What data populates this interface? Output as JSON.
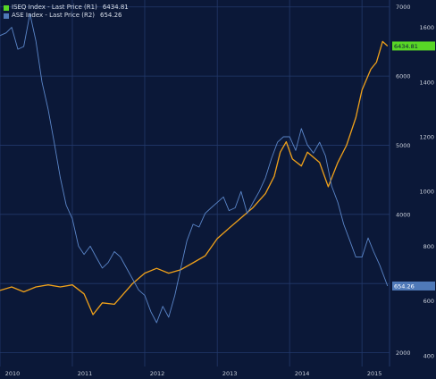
{
  "colors": {
    "background": "#0b1838",
    "grid": "#22386a",
    "axis_text": "#c8ced9",
    "iseq": "#f0a11a",
    "iseq_up": "#4fc12c",
    "iseq_down": "#e03a2a",
    "ase": "#5b86c9",
    "iseq_badge": "#58d626",
    "ase_badge": "#4f79b8"
  },
  "chart_data": {
    "type": "line",
    "title": "",
    "x_ticks": [
      "2010",
      "2011",
      "2012",
      "2013",
      "2014",
      "2015"
    ],
    "xlim": [
      "2010-01-01",
      "2015-05-20"
    ],
    "legend_placement": "top-left",
    "grid": true,
    "axes": {
      "left": {
        "ticks": [
          "2000",
          "3000",
          "4000",
          "5000",
          "6000",
          "7000"
        ],
        "ylim": [
          1800,
          7100
        ]
      },
      "right": {
        "ticks": [
          "400",
          "600",
          "800",
          "1000",
          "1200",
          "1400",
          "1600"
        ],
        "ylim": [
          360,
          1700
        ]
      }
    },
    "series": [
      {
        "name": "ISEQ Index - Last Price (R1)",
        "last_value": "6434.81",
        "axis": "left",
        "points": [
          [
            "2010-01-01",
            2900
          ],
          [
            "2010-03-01",
            2950
          ],
          [
            "2010-05-01",
            2880
          ],
          [
            "2010-07-01",
            2950
          ],
          [
            "2010-09-01",
            2980
          ],
          [
            "2010-11-01",
            2950
          ],
          [
            "2011-01-01",
            2980
          ],
          [
            "2011-03-01",
            2850
          ],
          [
            "2011-04-15",
            2550
          ],
          [
            "2011-06-01",
            2720
          ],
          [
            "2011-08-01",
            2700
          ],
          [
            "2011-09-01",
            2800
          ],
          [
            "2011-11-01",
            3000
          ],
          [
            "2012-01-01",
            3150
          ],
          [
            "2012-03-01",
            3220
          ],
          [
            "2012-05-01",
            3150
          ],
          [
            "2012-07-01",
            3200
          ],
          [
            "2012-09-01",
            3300
          ],
          [
            "2012-11-01",
            3400
          ],
          [
            "2013-01-01",
            3650
          ],
          [
            "2013-03-01",
            3800
          ],
          [
            "2013-05-01",
            3950
          ],
          [
            "2013-07-01",
            4100
          ],
          [
            "2013-09-01",
            4300
          ],
          [
            "2013-10-15",
            4550
          ],
          [
            "2013-11-15",
            4900
          ],
          [
            "2013-12-15",
            5050
          ],
          [
            "2014-01-15",
            4800
          ],
          [
            "2014-03-01",
            4700
          ],
          [
            "2014-04-01",
            4900
          ],
          [
            "2014-06-01",
            4750
          ],
          [
            "2014-07-15",
            4400
          ],
          [
            "2014-09-01",
            4750
          ],
          [
            "2014-10-15",
            5000
          ],
          [
            "2014-12-01",
            5400
          ],
          [
            "2015-01-01",
            5800
          ],
          [
            "2015-02-15",
            6100
          ],
          [
            "2015-03-15",
            6200
          ],
          [
            "2015-04-15",
            6500
          ],
          [
            "2015-05-10",
            6434.81
          ]
        ]
      },
      {
        "name": "ASE Index - Last Price (R2)",
        "last_value": "654.26",
        "axis": "right",
        "points": [
          [
            "2010-01-01",
            1570
          ],
          [
            "2010-02-01",
            1580
          ],
          [
            "2010-03-01",
            1600
          ],
          [
            "2010-04-01",
            1520
          ],
          [
            "2010-05-01",
            1530
          ],
          [
            "2010-06-01",
            1650
          ],
          [
            "2010-07-01",
            1550
          ],
          [
            "2010-08-01",
            1400
          ],
          [
            "2010-09-01",
            1300
          ],
          [
            "2010-10-01",
            1180
          ],
          [
            "2010-11-01",
            1050
          ],
          [
            "2010-12-01",
            950
          ],
          [
            "2011-01-01",
            900
          ],
          [
            "2011-02-01",
            800
          ],
          [
            "2011-03-01",
            770
          ],
          [
            "2011-04-01",
            800
          ],
          [
            "2011-05-01",
            760
          ],
          [
            "2011-06-01",
            720
          ],
          [
            "2011-07-01",
            740
          ],
          [
            "2011-08-01",
            780
          ],
          [
            "2011-09-01",
            760
          ],
          [
            "2011-10-01",
            720
          ],
          [
            "2011-11-01",
            680
          ],
          [
            "2011-12-01",
            640
          ],
          [
            "2012-01-01",
            620
          ],
          [
            "2012-02-01",
            560
          ],
          [
            "2012-03-01",
            520
          ],
          [
            "2012-04-01",
            580
          ],
          [
            "2012-05-01",
            540
          ],
          [
            "2012-06-01",
            620
          ],
          [
            "2012-07-01",
            720
          ],
          [
            "2012-08-01",
            820
          ],
          [
            "2012-09-01",
            880
          ],
          [
            "2012-10-01",
            870
          ],
          [
            "2012-11-01",
            920
          ],
          [
            "2012-12-01",
            940
          ],
          [
            "2013-01-01",
            960
          ],
          [
            "2013-02-01",
            980
          ],
          [
            "2013-03-01",
            930
          ],
          [
            "2013-04-01",
            940
          ],
          [
            "2013-05-01",
            1000
          ],
          [
            "2013-06-01",
            920
          ],
          [
            "2013-07-01",
            960
          ],
          [
            "2013-08-01",
            1000
          ],
          [
            "2013-09-01",
            1050
          ],
          [
            "2013-10-01",
            1120
          ],
          [
            "2013-11-01",
            1180
          ],
          [
            "2013-12-01",
            1200
          ],
          [
            "2014-01-01",
            1200
          ],
          [
            "2014-02-01",
            1150
          ],
          [
            "2014-03-01",
            1230
          ],
          [
            "2014-04-01",
            1170
          ],
          [
            "2014-05-01",
            1140
          ],
          [
            "2014-06-01",
            1180
          ],
          [
            "2014-07-01",
            1130
          ],
          [
            "2014-08-01",
            1020
          ],
          [
            "2014-09-01",
            960
          ],
          [
            "2014-10-01",
            880
          ],
          [
            "2014-11-01",
            820
          ],
          [
            "2014-12-01",
            760
          ],
          [
            "2015-01-01",
            760
          ],
          [
            "2015-02-01",
            830
          ],
          [
            "2015-03-01",
            780
          ],
          [
            "2015-04-01",
            730
          ],
          [
            "2015-05-10",
            654.26
          ]
        ]
      }
    ]
  }
}
